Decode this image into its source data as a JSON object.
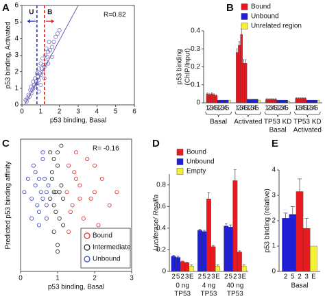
{
  "chart_data": [
    {
      "type": "scatter",
      "panel": "A",
      "xlabel": "p53 binding, Basal",
      "ylabel": [
        "p53 binding, Activated"
      ],
      "xlim": [
        0,
        6
      ],
      "ylim": [
        0,
        6
      ],
      "xticks": [
        0,
        1,
        2,
        3,
        4,
        5,
        6
      ],
      "yticks": [
        0,
        1,
        2,
        3,
        4,
        5,
        6
      ],
      "frame": true,
      "annotation": "R=0.82",
      "thresholds": [
        {
          "x": 0.8,
          "label": "U",
          "color": "#2233cc",
          "direction": "left"
        },
        {
          "x": 1.2,
          "label": "B",
          "color": "#dd2222",
          "direction": "right"
        }
      ],
      "fit": {
        "slope": 2.1,
        "intercept": -0.3,
        "color": "#6a5fb0"
      },
      "series": [
        {
          "color": "#7a6fc0",
          "x": [
            0.3,
            0.35,
            0.4,
            0.45,
            0.5,
            0.5,
            0.55,
            0.6,
            0.6,
            0.65,
            0.7,
            0.7,
            0.75,
            0.8,
            0.8,
            0.85,
            0.9,
            0.9,
            0.95,
            1.0,
            1.0,
            1.05,
            1.1,
            1.1,
            1.15,
            1.2,
            1.25,
            1.3,
            1.3,
            1.35,
            1.4,
            1.45,
            1.5,
            1.6,
            1.7,
            1.8,
            1.9,
            2.0,
            0.2,
            0.25,
            1.2,
            1.0,
            0.9,
            1.4,
            1.6
          ],
          "y": [
            0.4,
            0.6,
            0.5,
            0.9,
            0.7,
            1.1,
            0.9,
            1.0,
            1.4,
            1.2,
            1.1,
            1.6,
            1.4,
            1.3,
            1.9,
            1.7,
            1.5,
            2.2,
            1.9,
            1.8,
            2.5,
            2.2,
            2.0,
            2.8,
            2.4,
            2.3,
            3.0,
            2.6,
            3.4,
            2.9,
            3.2,
            3.8,
            3.3,
            3.5,
            3.8,
            4.1,
            4.3,
            4.5,
            0.3,
            0.2,
            1.6,
            1.2,
            0.8,
            2.5,
            2.9
          ]
        }
      ]
    },
    {
      "type": "groupedbar",
      "panel": "B",
      "ylabel": [
        "p53 binding",
        "(ChIP/Input)"
      ],
      "ylim": [
        0,
        0.4
      ],
      "yticks": [
        0,
        0.1,
        0.2,
        0.3,
        0.4
      ],
      "brackets": true,
      "legend": "upper-right",
      "categories": [
        [
          "Basal"
        ],
        [
          "Activated"
        ],
        [
          "TP53 KD",
          "Basal"
        ],
        [
          "TP53 KD",
          "Activated"
        ]
      ],
      "series": [
        {
          "name": "Bound",
          "color": "#e8191f",
          "tick_labels": [
            "1",
            "2",
            "3",
            "4",
            "5"
          ],
          "values": [
            [
              0.05,
              0.045,
              0.05,
              0.045,
              0.04
            ],
            [
              0.28,
              0.32,
              0.38,
              0.22,
              0.22
            ],
            [
              0.02,
              0.02,
              0.02,
              0.02,
              0.02
            ],
            [
              0.025,
              0.025,
              0.025,
              0.025,
              0.025
            ]
          ],
          "errors": [
            [
              0.005,
              0.005,
              0.005,
              0.005,
              0.005
            ],
            [
              0.02,
              0.02,
              0.03,
              0.02,
              0.02
            ],
            [
              0.003,
              0.003,
              0.003,
              0.003,
              0.003
            ],
            [
              0.003,
              0.003,
              0.003,
              0.003,
              0.003
            ]
          ]
        },
        {
          "name": "Unbound",
          "color": "#1f1fd6",
          "tick_labels": [
            "1",
            "2",
            "3",
            "4",
            "5"
          ],
          "values": [
            [
              0.015,
              0.015,
              0.015,
              0.015,
              0.015
            ],
            [
              0.02,
              0.02,
              0.02,
              0.02,
              0.02
            ],
            [
              0.015,
              0.015,
              0.015,
              0.015,
              0.015
            ],
            [
              0.015,
              0.015,
              0.015,
              0.015,
              0.015
            ]
          ]
        },
        {
          "name": "Unrelated region",
          "color": "#f5f032",
          "values": [
            [
              0.015
            ],
            [
              0.015
            ],
            [
              0.01
            ],
            [
              0.015
            ]
          ]
        }
      ]
    },
    {
      "type": "scatter",
      "panel": "C",
      "xlabel": "p53 binding, Basal",
      "ylabel": [
        "Predicted p53 binding affinity"
      ],
      "xlim": [
        0,
        3
      ],
      "ylim": [
        0,
        10
      ],
      "xticks": [
        0,
        1,
        2,
        3
      ],
      "frame": true,
      "annotation": "R= -0.16",
      "legend": "lower-right",
      "series": [
        {
          "name": "Bound",
          "color": "#e02a2a",
          "x": [
            1.25,
            1.3,
            1.4,
            1.5,
            1.6,
            1.7,
            1.8,
            1.9,
            2.0,
            2.1,
            2.2,
            2.4,
            2.6,
            1.3,
            1.5,
            1.7,
            1.35,
            1.45,
            2.0,
            1.6
          ],
          "y": [
            6,
            8,
            5,
            7,
            6.5,
            4,
            8.5,
            5.5,
            6,
            3.5,
            7,
            5,
            6,
            3,
            9,
            2.5,
            4.5,
            7.5,
            8,
            5.5
          ]
        },
        {
          "name": "Intermediate",
          "color": "#222222",
          "x": [
            0.8,
            0.85,
            0.9,
            0.95,
            1.0,
            1.05,
            1.1,
            1.15,
            0.9,
            1.0,
            0.85,
            1.1,
            0.95,
            1.05,
            0.9,
            1.0,
            0.8,
            1.15,
            0.9,
            1.0
          ],
          "y": [
            9,
            7,
            5,
            6,
            8,
            4,
            6.5,
            5.5,
            3,
            2,
            7.5,
            9.5,
            4.5,
            6,
            8.5,
            1.5,
            5.5,
            3.5,
            6,
            9
          ]
        },
        {
          "name": "Unbound",
          "color": "#3344bb",
          "x": [
            0.1,
            0.2,
            0.3,
            0.35,
            0.4,
            0.45,
            0.5,
            0.5,
            0.55,
            0.6,
            0.6,
            0.65,
            0.7,
            0.7,
            0.75,
            0.3,
            0.5,
            0.6,
            0.4,
            0.7
          ],
          "y": [
            6,
            7,
            5.5,
            8,
            6.5,
            5,
            7,
            4.5,
            6,
            8.5,
            5.5,
            7,
            6,
            4,
            6.5,
            4,
            3.5,
            9,
            7.5,
            5
          ]
        }
      ]
    },
    {
      "type": "groupedbar",
      "panel": "D",
      "ylabel": [
        "Luciferase/ Renilla"
      ],
      "ylim": [
        0,
        0.9
      ],
      "yticks": [
        0,
        0.2,
        0.4,
        0.6,
        0.8
      ],
      "legend": "upper-left",
      "order": [
        1,
        0,
        2
      ],
      "categories": [
        [
          "0 ng",
          "TP53"
        ],
        [
          "4 ng",
          "TP53"
        ],
        [
          "40 ng",
          "TP53"
        ]
      ],
      "series": [
        {
          "name": "Bound",
          "color": "#e8191f",
          "tick_labels": [
            "2",
            "3"
          ],
          "values": [
            [
              0.09,
              0.08
            ],
            [
              0.67,
              0.23
            ],
            [
              0.84,
              0.18
            ]
          ],
          "errors": [
            [
              0.005,
              0.005
            ],
            [
              0.06,
              0.01
            ],
            [
              0.1,
              0.01
            ]
          ]
        },
        {
          "name": "Unbound",
          "color": "#1f1fd6",
          "tick_labels": [
            "2",
            "5"
          ],
          "values": [
            [
              0.14,
              0.13
            ],
            [
              0.38,
              0.37
            ],
            [
              0.42,
              0.41
            ]
          ],
          "errors": [
            [
              0.01,
              0.01
            ],
            [
              0.01,
              0.01
            ],
            [
              0.02,
              0.02
            ]
          ]
        },
        {
          "name": "Empty",
          "color": "#f5f032",
          "tick_labels": [
            "E"
          ],
          "values": [
            [
              0.05
            ],
            [
              0.05
            ],
            [
              0.05
            ]
          ],
          "errors": [
            [
              0.01
            ],
            [
              0.01
            ],
            [
              0.01
            ]
          ]
        }
      ]
    },
    {
      "type": "groupedbar",
      "panel": "E",
      "ylabel": [
        "p53 binding (relative)"
      ],
      "ylim": [
        0,
        4
      ],
      "yticks": [
        0,
        1,
        2,
        3,
        4
      ],
      "order": [
        1,
        0,
        2
      ],
      "categories": [
        [
          "Basal"
        ]
      ],
      "series": [
        {
          "color": "#e8191f",
          "tick_labels": [
            "2",
            "3"
          ],
          "values": [
            [
              3.15,
              1.7
            ]
          ],
          "errors": [
            [
              0.5,
              0.4
            ]
          ]
        },
        {
          "color": "#1f1fd6",
          "tick_labels": [
            "2",
            "5"
          ],
          "values": [
            [
              2.1,
              2.25
            ]
          ],
          "errors": [
            [
              0.2,
              0.3
            ]
          ]
        },
        {
          "color": "#f5f032",
          "tick_labels": [
            "E"
          ],
          "values": [
            [
              1.0
            ]
          ]
        }
      ]
    }
  ]
}
